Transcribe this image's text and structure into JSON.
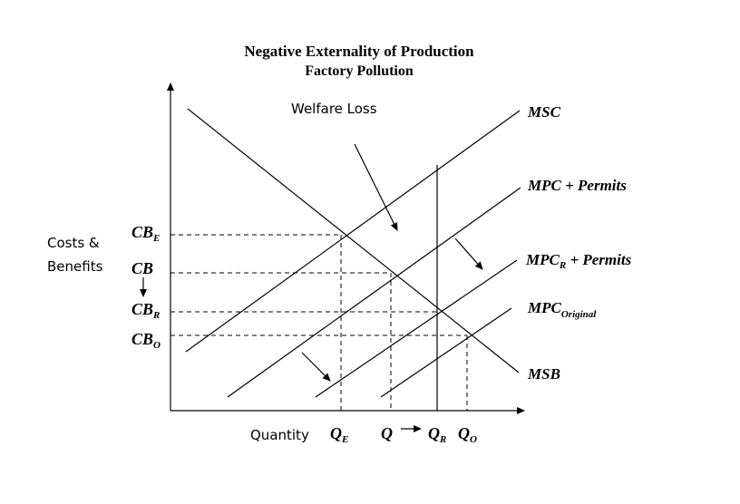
{
  "title": "Negative Externality of Production",
  "subtitle": "Factory Pollution",
  "annotation": "Welfare Loss",
  "y_axis_label_line1": "Costs &",
  "y_axis_label_line2": "Benefits",
  "x_axis_label": "Quantity",
  "curves": {
    "msc": "MSC",
    "mpc_permits": "MPC + Permits",
    "mpc_r_main": "MPC",
    "mpc_r_sub": "R",
    "mpc_r_rest": " + Permits",
    "mpc_original_main": "MPC",
    "mpc_original_sub": "Original",
    "msb": "MSB"
  },
  "y_ticks": {
    "cb_e_main": "CB",
    "cb_e_sub": "E",
    "cb": "CB",
    "cb_r_main": "CB",
    "cb_r_sub": "R",
    "cb_o_main": "CB",
    "cb_o_sub": "O"
  },
  "x_ticks": {
    "q_e_main": "Q",
    "q_e_sub": "E",
    "q": "Q",
    "q_r_main": "Q",
    "q_r_sub": "R",
    "q_o_main": "Q",
    "q_o_sub": "O"
  }
}
